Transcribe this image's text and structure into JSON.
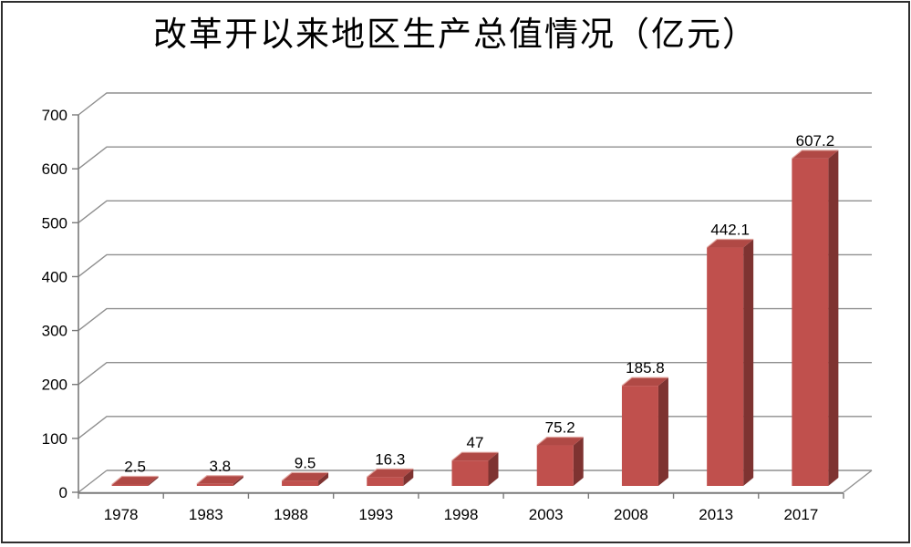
{
  "chart_data": {
    "type": "bar",
    "style": "3d-column",
    "title": "改革开以来地区生产总值情况（亿元）",
    "categories": [
      "1978",
      "1983",
      "1988",
      "1993",
      "1998",
      "2003",
      "2008",
      "2013",
      "2017"
    ],
    "values": [
      2.5,
      3.8,
      9.5,
      16.3,
      47,
      75.2,
      185.8,
      442.1,
      607.2
    ],
    "data_labels": [
      "2.5",
      "3.8",
      "9.5",
      "16.3",
      "47",
      "75.2",
      "185.8",
      "442.1",
      "607.2"
    ],
    "xlabel": "",
    "ylabel": "",
    "ylim": [
      0,
      700
    ],
    "ytick_step": 100,
    "yticks": [
      0,
      100,
      200,
      300,
      400,
      500,
      600,
      700
    ],
    "grid": true,
    "legend": "none",
    "colors": {
      "bar_front": "#C0504D",
      "bar_top": "#B04945",
      "bar_side": "#7E3331",
      "bar_highlight": "#E2A7A2",
      "gridline": "#8F8F8F",
      "axis": "#7A7A7A",
      "text": "#000000",
      "frame_border": "#2E2E2E",
      "background": "#FFFFFF"
    }
  }
}
